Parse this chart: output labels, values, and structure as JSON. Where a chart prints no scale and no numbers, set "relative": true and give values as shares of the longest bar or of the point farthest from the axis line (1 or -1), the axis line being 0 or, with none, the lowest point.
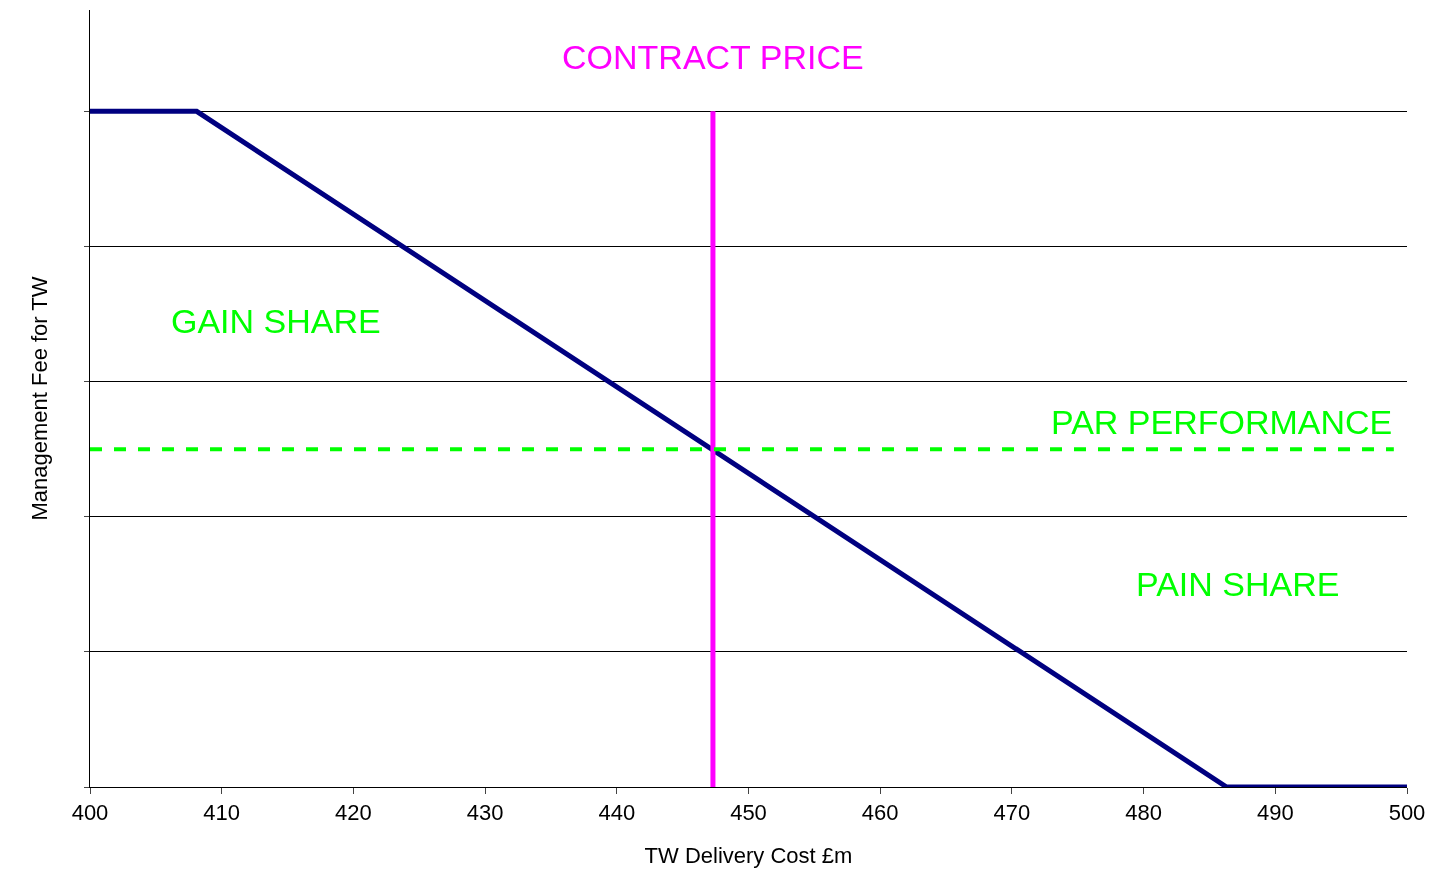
{
  "chart_data": {
    "type": "line",
    "relative": true,
    "xlabel": "TW Delivery Cost £m",
    "ylabel": "Management Fee for TW",
    "xlim": [
      400,
      500
    ],
    "xticks": [
      400,
      410,
      420,
      430,
      440,
      450,
      460,
      470,
      480,
      490,
      500
    ],
    "series": [
      {
        "color": "#000080",
        "x": [
          400,
          408.1,
          486.3,
          500
        ],
        "values": [
          1,
          1,
          0,
          0
        ]
      }
    ],
    "ref_lines": [
      {
        "axis": "x",
        "value": 447.3,
        "label": "CONTRACT PRICE",
        "color": "#ff00ff",
        "line_style": "solid"
      },
      {
        "axis": "y",
        "value": 0.5,
        "label": "PAR PERFORMANCE",
        "color": "#00ff00",
        "line_style": "dashed"
      }
    ],
    "annotations": [
      "GAIN SHARE",
      "PAIN SHARE"
    ],
    "grid": "y",
    "marker": "none",
    "line_style": "solid"
  }
}
